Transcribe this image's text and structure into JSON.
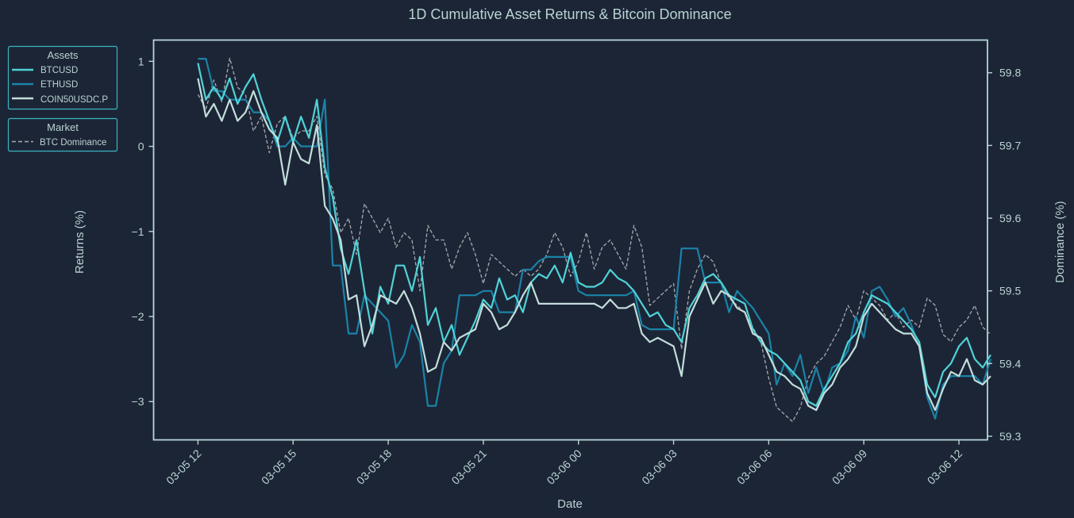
{
  "chart_data": {
    "type": "line",
    "title": "1D Cumulative Asset Returns & Bitcoin Dominance",
    "xlabel": "Date",
    "ylabel": "Returns (%)",
    "ylabel_right": "Dominance (%)",
    "x_start_hour": 12,
    "x_step_hours": 0.25,
    "x_ticks": [
      "03-05 12",
      "03-05 15",
      "03-05 18",
      "03-05 21",
      "03-06 00",
      "03-06 03",
      "03-06 06",
      "03-06 09",
      "03-06 12"
    ],
    "x_tick_hours": [
      12,
      15,
      18,
      21,
      24,
      27,
      30,
      33,
      36
    ],
    "xlim_hours": [
      10.6,
      36.9
    ],
    "ylim": [
      -3.45,
      1.25
    ],
    "y_ticks": [
      1,
      0,
      -1,
      -2,
      -3
    ],
    "y_tick_labels": [
      "1",
      "0",
      "−1",
      "−2",
      "−3"
    ],
    "ylim_right": [
      59.295,
      59.845
    ],
    "y_ticks_right": [
      59.8,
      59.7,
      59.6,
      59.5,
      59.4,
      59.3
    ],
    "y_tick_labels_right": [
      "59.8",
      "59.7",
      "59.6",
      "59.5",
      "59.4",
      "59.3"
    ],
    "grid": false,
    "legends": [
      {
        "title": "Assets",
        "position": "outside-top-left",
        "entries": [
          "BTCUSD",
          "ETHUSD",
          "COIN50USDC.P"
        ]
      },
      {
        "title": "Market",
        "position": "outside-top-left",
        "entries": [
          "BTC Dominance"
        ]
      }
    ],
    "series": [
      {
        "name": "BTCUSD",
        "axis": "left",
        "color": "#4fd3d6",
        "style": "solid",
        "values": [
          0.98,
          0.55,
          0.7,
          0.55,
          0.8,
          0.5,
          0.7,
          0.85,
          0.55,
          0.3,
          0.05,
          0.35,
          0.05,
          0.35,
          0.1,
          0.55,
          -0.25,
          -0.6,
          -1.2,
          -1.5,
          -1.1,
          -1.7,
          -2.2,
          -1.65,
          -1.85,
          -1.4,
          -1.4,
          -1.7,
          -1.3,
          -2.1,
          -1.9,
          -2.3,
          -2.1,
          -2.45,
          -2.25,
          -2.05,
          -1.8,
          -1.9,
          -1.55,
          -1.8,
          -1.75,
          -1.95,
          -1.6,
          -1.5,
          -1.55,
          -1.4,
          -1.6,
          -1.25,
          -1.6,
          -1.65,
          -1.65,
          -1.6,
          -1.45,
          -1.55,
          -1.6,
          -1.7,
          -1.85,
          -2.0,
          -1.95,
          -2.1,
          -2.15,
          -2.3,
          -1.9,
          -1.75,
          -1.55,
          -1.5,
          -1.6,
          -1.75,
          -1.8,
          -1.85,
          -2.15,
          -2.3,
          -2.4,
          -2.45,
          -2.55,
          -2.65,
          -2.75,
          -3.0,
          -3.05,
          -2.85,
          -2.7,
          -2.55,
          -2.3,
          -2.2,
          -1.95,
          -1.75,
          -1.8,
          -1.85,
          -1.95,
          -2.05,
          -2.15,
          -2.3,
          -2.8,
          -2.95,
          -2.65,
          -2.55,
          -2.35,
          -2.25,
          -2.5,
          -2.6,
          -2.45
        ]
      },
      {
        "name": "ETHUSD",
        "axis": "left",
        "color": "#1a83a8",
        "style": "solid",
        "values": [
          1.03,
          1.03,
          0.65,
          0.65,
          0.55,
          0.55,
          0.55,
          0.4,
          0.4,
          0.3,
          0.0,
          0.0,
          0.1,
          0.0,
          0.0,
          0.0,
          0.55,
          -1.4,
          -1.4,
          -2.2,
          -2.2,
          -1.75,
          -1.85,
          -1.95,
          -2.05,
          -2.6,
          -2.45,
          -2.1,
          -2.3,
          -3.05,
          -3.05,
          -2.55,
          -2.4,
          -1.75,
          -1.75,
          -1.75,
          -1.7,
          -1.7,
          -1.95,
          -1.95,
          -1.95,
          -1.45,
          -1.45,
          -1.35,
          -1.3,
          -1.3,
          -1.3,
          -1.3,
          -1.7,
          -1.75,
          -1.75,
          -1.75,
          -1.75,
          -1.75,
          -1.75,
          -1.7,
          -2.1,
          -2.15,
          -2.15,
          -2.15,
          -2.15,
          -1.2,
          -1.2,
          -1.2,
          -1.6,
          -1.6,
          -1.6,
          -1.95,
          -1.7,
          -1.8,
          -1.9,
          -2.05,
          -2.2,
          -2.8,
          -2.55,
          -2.7,
          -2.45,
          -2.9,
          -2.6,
          -2.9,
          -2.6,
          -2.55,
          -2.4,
          -2.0,
          -2.25,
          -1.7,
          -1.65,
          -1.8,
          -2.0,
          -1.9,
          -2.1,
          -2.35,
          -2.95,
          -3.2,
          -2.8,
          -2.7,
          -2.7,
          -2.7,
          -2.7,
          -2.8,
          -2.5
        ]
      },
      {
        "name": "COIN50USDC.P",
        "axis": "left",
        "color": "#c3dedb",
        "style": "solid",
        "values": [
          0.8,
          0.35,
          0.5,
          0.3,
          0.55,
          0.3,
          0.4,
          0.65,
          0.4,
          0.2,
          0.1,
          -0.45,
          0.05,
          -0.15,
          -0.2,
          0.25,
          -0.7,
          -0.85,
          -1.1,
          -1.8,
          -1.75,
          -2.35,
          -2.1,
          -1.75,
          -1.8,
          -1.85,
          -1.7,
          -1.9,
          -2.2,
          -2.65,
          -2.6,
          -2.3,
          -2.4,
          -2.25,
          -2.2,
          -2.15,
          -1.85,
          -1.95,
          -2.15,
          -2.1,
          -1.95,
          -1.75,
          -1.6,
          -1.85,
          -1.85,
          -1.85,
          -1.85,
          -1.85,
          -1.85,
          -1.85,
          -1.85,
          -1.9,
          -1.8,
          -1.9,
          -1.9,
          -1.85,
          -2.2,
          -2.3,
          -2.25,
          -2.3,
          -2.35,
          -2.7,
          -2.0,
          -1.8,
          -1.6,
          -1.85,
          -1.7,
          -1.75,
          -1.9,
          -1.95,
          -2.2,
          -2.25,
          -2.45,
          -2.65,
          -2.7,
          -2.8,
          -2.85,
          -3.05,
          -3.1,
          -2.9,
          -2.8,
          -2.6,
          -2.5,
          -2.35,
          -2.0,
          -1.85,
          -1.95,
          -2.05,
          -2.15,
          -2.2,
          -2.2,
          -2.35,
          -2.9,
          -3.1,
          -2.85,
          -2.65,
          -2.7,
          -2.5,
          -2.75,
          -2.8,
          -2.7
        ]
      },
      {
        "name": "BTC Dominance",
        "axis": "right",
        "color": "#a9a9ae",
        "style": "dashed",
        "values": [
          59.77,
          59.75,
          59.79,
          59.76,
          59.82,
          59.78,
          59.77,
          59.72,
          59.74,
          59.69,
          59.73,
          59.74,
          59.71,
          59.72,
          59.72,
          59.74,
          59.66,
          59.64,
          59.58,
          59.6,
          59.55,
          59.62,
          59.6,
          59.58,
          59.6,
          59.56,
          59.58,
          59.57,
          59.5,
          59.59,
          59.57,
          59.57,
          59.53,
          59.56,
          59.58,
          59.55,
          59.51,
          59.55,
          59.54,
          59.53,
          59.52,
          59.53,
          59.52,
          59.53,
          59.55,
          59.58,
          59.56,
          59.52,
          59.54,
          59.58,
          59.53,
          59.56,
          59.57,
          59.55,
          59.53,
          59.59,
          59.56,
          59.48,
          59.49,
          59.5,
          59.51,
          59.42,
          59.5,
          59.53,
          59.55,
          59.54,
          59.51,
          59.49,
          59.48,
          59.47,
          59.45,
          59.43,
          59.38,
          59.34,
          59.33,
          59.32,
          59.34,
          59.38,
          59.4,
          59.41,
          59.43,
          59.45,
          59.48,
          59.46,
          59.5,
          59.49,
          59.48,
          59.46,
          59.47,
          59.45,
          59.46,
          59.45,
          59.49,
          59.48,
          59.44,
          59.43,
          59.45,
          59.46,
          59.48,
          59.45,
          59.44
        ]
      }
    ]
  }
}
